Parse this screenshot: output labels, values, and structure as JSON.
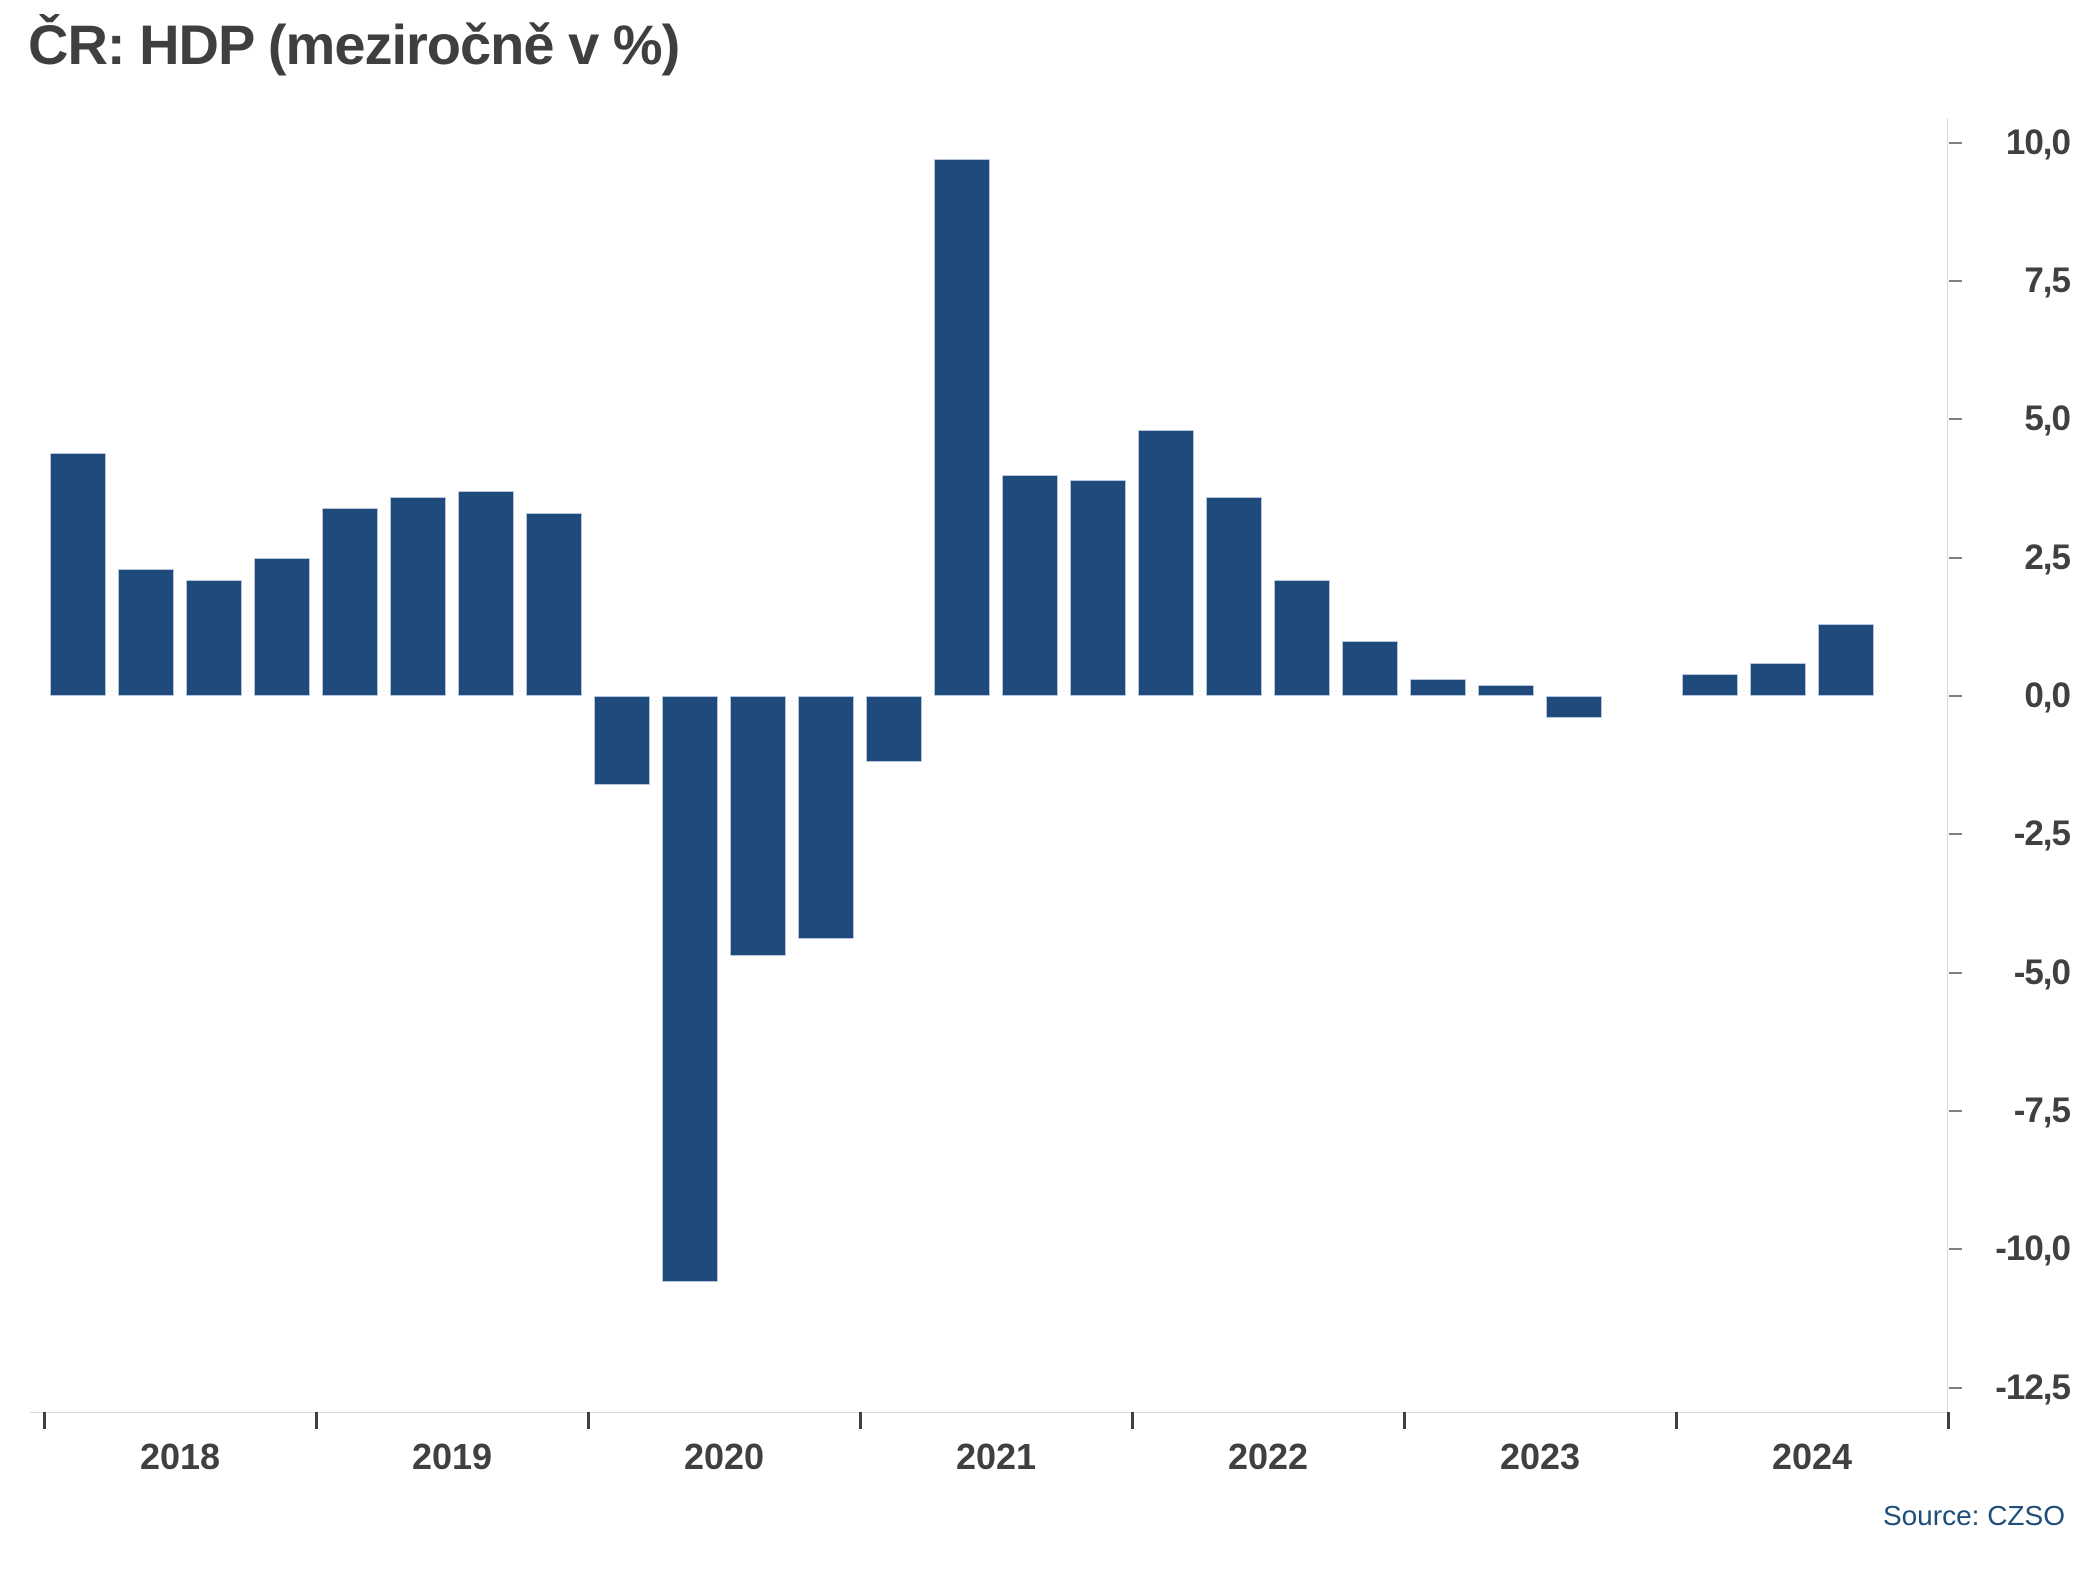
{
  "title": "ČR: HDP (meziročně v %)",
  "source_label": "Source: CZSO",
  "colors": {
    "bar_fill": "#1f4b7c",
    "bar_border": "#b7c6dc",
    "axis_line": "#d9d9d9",
    "y_tick": "#7f7f7f",
    "x_tick": "#404040",
    "label_text": "#404040",
    "title_text": "#3f3f3f",
    "source_text": "#1f4e79"
  },
  "chart_data": {
    "type": "bar",
    "title": "ČR: HDP (meziročně v %)",
    "xlabel": "",
    "ylabel": "",
    "unit": "%",
    "grid": false,
    "legend_position": "none",
    "ylim": [
      -12.5,
      10.0
    ],
    "categories": [
      "2018 Q1",
      "2018 Q2",
      "2018 Q3",
      "2018 Q4",
      "2019 Q1",
      "2019 Q2",
      "2019 Q3",
      "2019 Q4",
      "2020 Q1",
      "2020 Q2",
      "2020 Q3",
      "2020 Q4",
      "2021 Q1",
      "2021 Q2",
      "2021 Q3",
      "2021 Q4",
      "2022 Q1",
      "2022 Q2",
      "2022 Q3",
      "2022 Q4",
      "2023 Q1",
      "2023 Q2",
      "2023 Q3",
      "2023 Q4",
      "2024 Q1",
      "2024 Q2",
      "2024 Q3"
    ],
    "values": [
      4.4,
      2.3,
      2.1,
      2.5,
      3.4,
      3.6,
      3.7,
      3.3,
      -1.6,
      -10.6,
      -4.7,
      -4.4,
      -1.2,
      9.7,
      4.0,
      3.9,
      4.8,
      3.6,
      2.1,
      1.0,
      0.3,
      0.2,
      -0.4,
      0.0,
      0.4,
      0.6,
      1.3
    ],
    "x_year_labels": [
      "2018",
      "2019",
      "2020",
      "2021",
      "2022",
      "2023",
      "2024"
    ],
    "y_ticks": [
      10.0,
      7.5,
      5.0,
      2.5,
      0.0,
      -2.5,
      -5.0,
      -7.5,
      -10.0,
      -12.5
    ],
    "y_tick_labels": [
      "10,0",
      "7,5",
      "5,0",
      "2,5",
      "0,0",
      "-2,5",
      "-5,0",
      "-7,5",
      "-10,0",
      "-12,5"
    ]
  }
}
